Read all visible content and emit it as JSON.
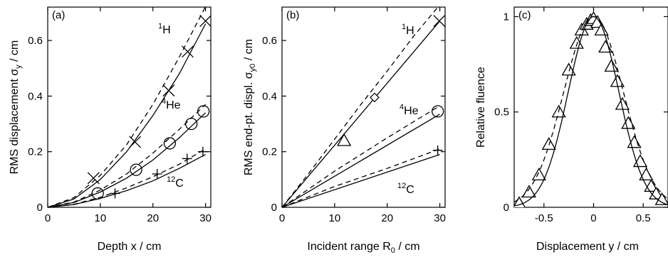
{
  "chart_data": [
    {
      "panel": "(a)",
      "type": "scatter",
      "xlabel": {
        "main": "Depth x / cm"
      },
      "ylabel": {
        "main": "RMS displacement σ",
        "sub": "y",
        "tail": " / cm"
      },
      "xlim": [
        0,
        31
      ],
      "ylim": [
        0,
        0.72
      ],
      "xticks": [
        0,
        10,
        20,
        30
      ],
      "xtick_labels": [
        "0",
        "10",
        "20",
        "30"
      ],
      "yticks": [
        0,
        0.2,
        0.4,
        0.6
      ],
      "ytick_labels": [
        "0",
        "0.2",
        "0.4",
        "0.6"
      ],
      "species_labels": [
        {
          "id": "h",
          "sup": "1",
          "base": "H"
        },
        {
          "id": "he",
          "sup": "4",
          "base": "He"
        },
        {
          "id": "c",
          "sup": "12",
          "base": "C"
        }
      ],
      "series": [
        {
          "species": "h",
          "marker": "x",
          "x": [
            8.7,
            16.6,
            23.0,
            26.6,
            30.0
          ],
          "y": [
            0.105,
            0.235,
            0.42,
            0.56,
            0.67
          ],
          "solid": {
            "x": [
              0,
              5,
              10,
              15,
              20,
              25,
              30
            ],
            "y": [
              0,
              0.03,
              0.1,
              0.2,
              0.33,
              0.48,
              0.66
            ]
          },
          "dashed": {
            "x": [
              0,
              5,
              10,
              15,
              20,
              25,
              30.5
            ],
            "y": [
              0,
              0.035,
              0.115,
              0.225,
              0.37,
              0.54,
              0.74
            ]
          }
        },
        {
          "species": "he",
          "marker": "circle",
          "x": [
            9.5,
            16.8,
            23.2,
            27.3,
            29.6
          ],
          "y": [
            0.05,
            0.135,
            0.23,
            0.3,
            0.345
          ],
          "solid": {
            "x": [
              0,
              5,
              10,
              15,
              20,
              25,
              30
            ],
            "y": [
              0,
              0.017,
              0.055,
              0.105,
              0.17,
              0.25,
              0.34
            ]
          },
          "dashed": {
            "x": [
              0,
              5,
              10,
              15,
              20,
              25,
              30
            ],
            "y": [
              0,
              0.019,
              0.062,
              0.12,
              0.195,
              0.28,
              0.37
            ]
          }
        },
        {
          "species": "c",
          "marker": "plus",
          "x": [
            12.8,
            20.8,
            26.5,
            29.5
          ],
          "y": [
            0.05,
            0.12,
            0.175,
            0.2
          ],
          "solid": {
            "x": [
              0,
              5,
              10,
              15,
              20,
              25,
              30
            ],
            "y": [
              0,
              0.01,
              0.032,
              0.06,
              0.095,
              0.14,
              0.19
            ]
          },
          "dashed": {
            "x": [
              0,
              5,
              10,
              15,
              20,
              25,
              30
            ],
            "y": [
              0,
              0.011,
              0.036,
              0.07,
              0.11,
              0.155,
              0.21
            ]
          }
        }
      ]
    },
    {
      "panel": "(b)",
      "type": "line",
      "xlabel": {
        "main": "Incident range R",
        "sub": "0",
        "tail": " / cm"
      },
      "ylabel": {
        "main": "RMS end-pt. displ. σ",
        "sub": "y0",
        "tail": " / cm"
      },
      "xlim": [
        0,
        31
      ],
      "ylim": [
        0,
        0.72
      ],
      "xticks": [
        0,
        10,
        20,
        30
      ],
      "xtick_labels": [
        "0",
        "10",
        "20",
        "30"
      ],
      "yticks": [
        0,
        0.2,
        0.4,
        0.6
      ],
      "ytick_labels": [
        "0",
        "0.2",
        "0.4",
        "0.6"
      ],
      "species_labels": [
        {
          "id": "h",
          "sup": "1",
          "base": "H"
        },
        {
          "id": "he",
          "sup": "4",
          "base": "He"
        },
        {
          "id": "c",
          "sup": "12",
          "base": "C"
        }
      ],
      "series": [
        {
          "species": "h",
          "solid": {
            "x": [
              0,
              30
            ],
            "y": [
              0,
              0.67
            ]
          },
          "dashed": {
            "x": [
              0,
              5,
              10,
              15,
              20,
              25,
              30.5
            ],
            "y": [
              0,
              0.12,
              0.245,
              0.37,
              0.49,
              0.615,
              0.74
            ]
          },
          "points": [
            {
              "marker": "triangle",
              "x": 11.8,
              "y": 0.24
            },
            {
              "marker": "diamond",
              "x": 17.6,
              "y": 0.395
            },
            {
              "marker": "x",
              "x": 29.9,
              "y": 0.67
            }
          ]
        },
        {
          "species": "he",
          "solid": {
            "x": [
              0,
              30
            ],
            "y": [
              0,
              0.335
            ]
          },
          "dashed": {
            "x": [
              0,
              10,
              20,
              30
            ],
            "y": [
              0,
              0.13,
              0.25,
              0.365
            ]
          },
          "points": [
            {
              "marker": "circle",
              "x": 29.6,
              "y": 0.345
            }
          ]
        },
        {
          "species": "c",
          "solid": {
            "x": [
              0,
              30
            ],
            "y": [
              0,
              0.19
            ]
          },
          "dashed": {
            "x": [
              0,
              10,
              20,
              30
            ],
            "y": [
              0,
              0.075,
              0.14,
              0.21
            ]
          },
          "points": [
            {
              "marker": "plus",
              "x": 29.6,
              "y": 0.205
            }
          ]
        }
      ]
    },
    {
      "panel": "(c)",
      "type": "scatter",
      "xlabel": {
        "main": "Displacement y / cm"
      },
      "ylabel": {
        "main": "Relative fluence"
      },
      "xlim": [
        -0.8,
        0.75
      ],
      "ylim": [
        0,
        1.05
      ],
      "xticks": [
        -0.5,
        0,
        0.5
      ],
      "xtick_labels": [
        "-0.5",
        "0",
        "0.5"
      ],
      "yticks": [
        0,
        0.5,
        1
      ],
      "ytick_labels": [
        "0",
        "0.5",
        "1"
      ],
      "series": [
        {
          "marker": "triangle",
          "x": [
            -0.75,
            -0.65,
            -0.55,
            -0.45,
            -0.35,
            -0.25,
            -0.17,
            -0.12,
            -0.07,
            -0.03,
            0,
            0.04,
            0.08,
            0.12,
            0.18,
            0.24,
            0.29,
            0.35,
            0.41,
            0.47,
            0.53,
            0.58,
            0.63,
            0.69
          ],
          "y": [
            0.02,
            0.08,
            0.17,
            0.33,
            0.5,
            0.72,
            0.86,
            0.93,
            0.96,
            0.98,
            0.99,
            0.97,
            0.93,
            0.84,
            0.74,
            0.66,
            0.54,
            0.44,
            0.34,
            0.24,
            0.17,
            0.11,
            0.07,
            0.04
          ]
        }
      ],
      "curves": [
        {
          "style": "solid",
          "kind": "gaussian",
          "sigma": 0.255,
          "amplitude": 1
        },
        {
          "style": "dashed",
          "kind": "gaussian",
          "sigma": 0.3,
          "amplitude": 1
        }
      ]
    }
  ]
}
